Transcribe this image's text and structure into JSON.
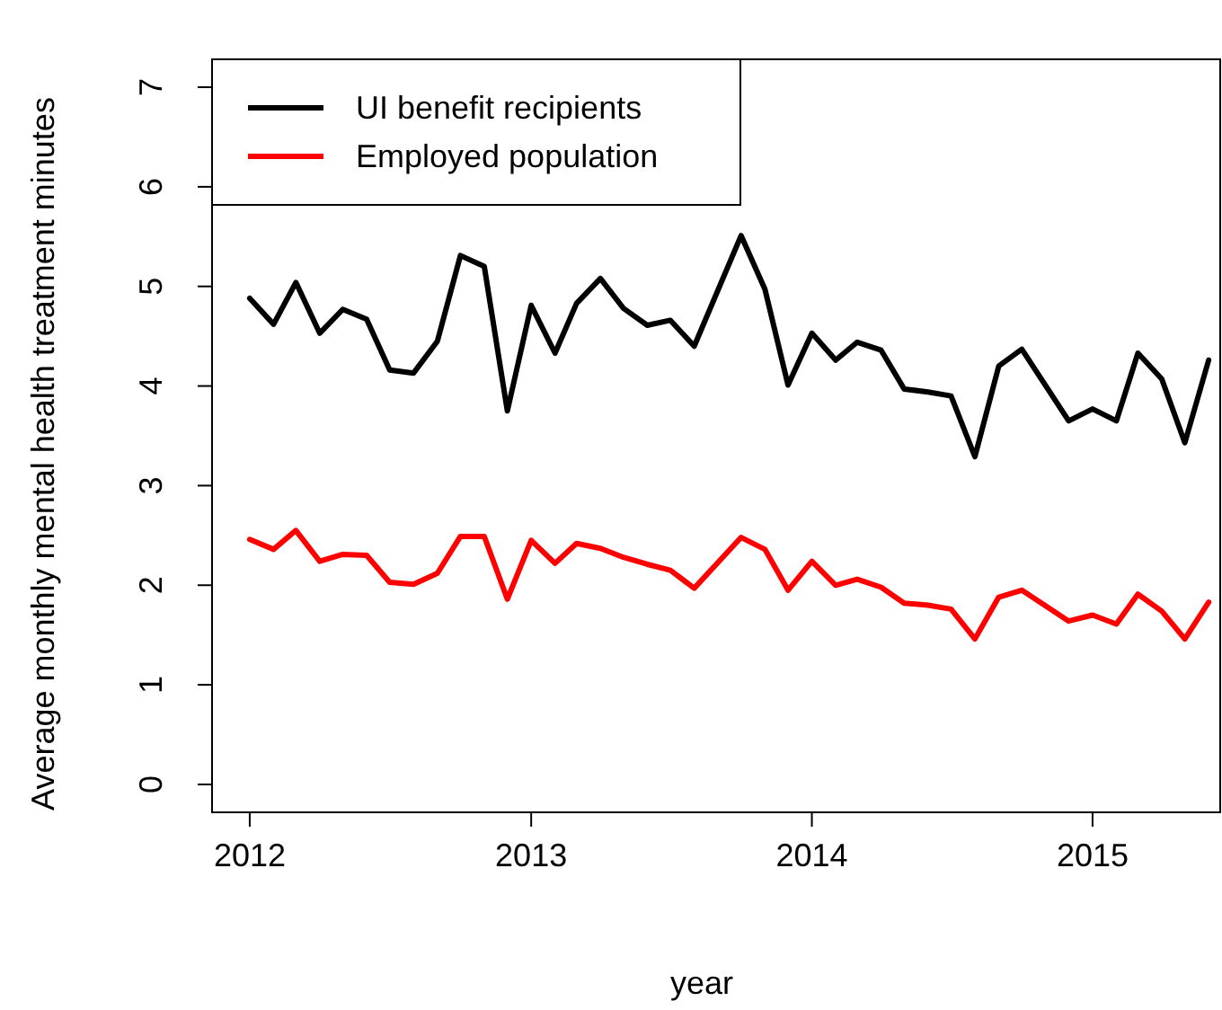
{
  "chart_data": {
    "type": "line",
    "xlabel": "year",
    "ylabel": "Average monthly mental health treatment minutes",
    "x": [
      "2012-01",
      "2012-02",
      "2012-03",
      "2012-04",
      "2012-05",
      "2012-06",
      "2012-07",
      "2012-08",
      "2012-09",
      "2012-10",
      "2012-11",
      "2012-12",
      "2013-01",
      "2013-02",
      "2013-03",
      "2013-04",
      "2013-05",
      "2013-06",
      "2013-07",
      "2013-08",
      "2013-10",
      "2013-11",
      "2013-12",
      "2014-01",
      "2014-02",
      "2014-03",
      "2014-04",
      "2014-05",
      "2014-06",
      "2014-07",
      "2014-08",
      "2014-09",
      "2014-10",
      "2014-12",
      "2015-01",
      "2015-02",
      "2015-03",
      "2015-04",
      "2015-05",
      "2015-06"
    ],
    "series": [
      {
        "name": "UI benefit recipients",
        "color": "#000000",
        "values": [
          4.88,
          4.62,
          5.04,
          4.53,
          4.77,
          4.67,
          4.16,
          4.13,
          4.45,
          5.31,
          5.2,
          3.75,
          4.81,
          4.33,
          4.83,
          5.08,
          4.78,
          4.61,
          4.66,
          4.4,
          5.51,
          4.97,
          4.01,
          4.53,
          4.26,
          4.44,
          4.36,
          3.97,
          3.94,
          3.9,
          3.29,
          4.2,
          4.37,
          3.65,
          3.77,
          3.65,
          4.33,
          4.07,
          3.43,
          4.26
        ]
      },
      {
        "name": "Employed population",
        "color": "#ff0000",
        "values": [
          2.46,
          2.36,
          2.55,
          2.24,
          2.31,
          2.3,
          2.03,
          2.01,
          2.12,
          2.49,
          2.49,
          1.86,
          2.45,
          2.22,
          2.42,
          2.37,
          2.28,
          2.21,
          2.15,
          1.97,
          2.48,
          2.36,
          1.95,
          2.24,
          2.0,
          2.06,
          1.98,
          1.82,
          1.8,
          1.76,
          1.46,
          1.88,
          1.95,
          1.64,
          1.7,
          1.61,
          1.91,
          1.74,
          1.46,
          1.83
        ]
      }
    ],
    "xlim": [
      "2011-11-13",
      "2015-06-16"
    ],
    "xticks": [
      "2012",
      "2013",
      "2014",
      "2015"
    ],
    "ylim": [
      -0.28,
      7.28
    ],
    "yticks": [
      0,
      1,
      2,
      3,
      4,
      5,
      6,
      7
    ],
    "grid": false,
    "legend": "top left",
    "marker": "none",
    "line_style": "solid"
  }
}
